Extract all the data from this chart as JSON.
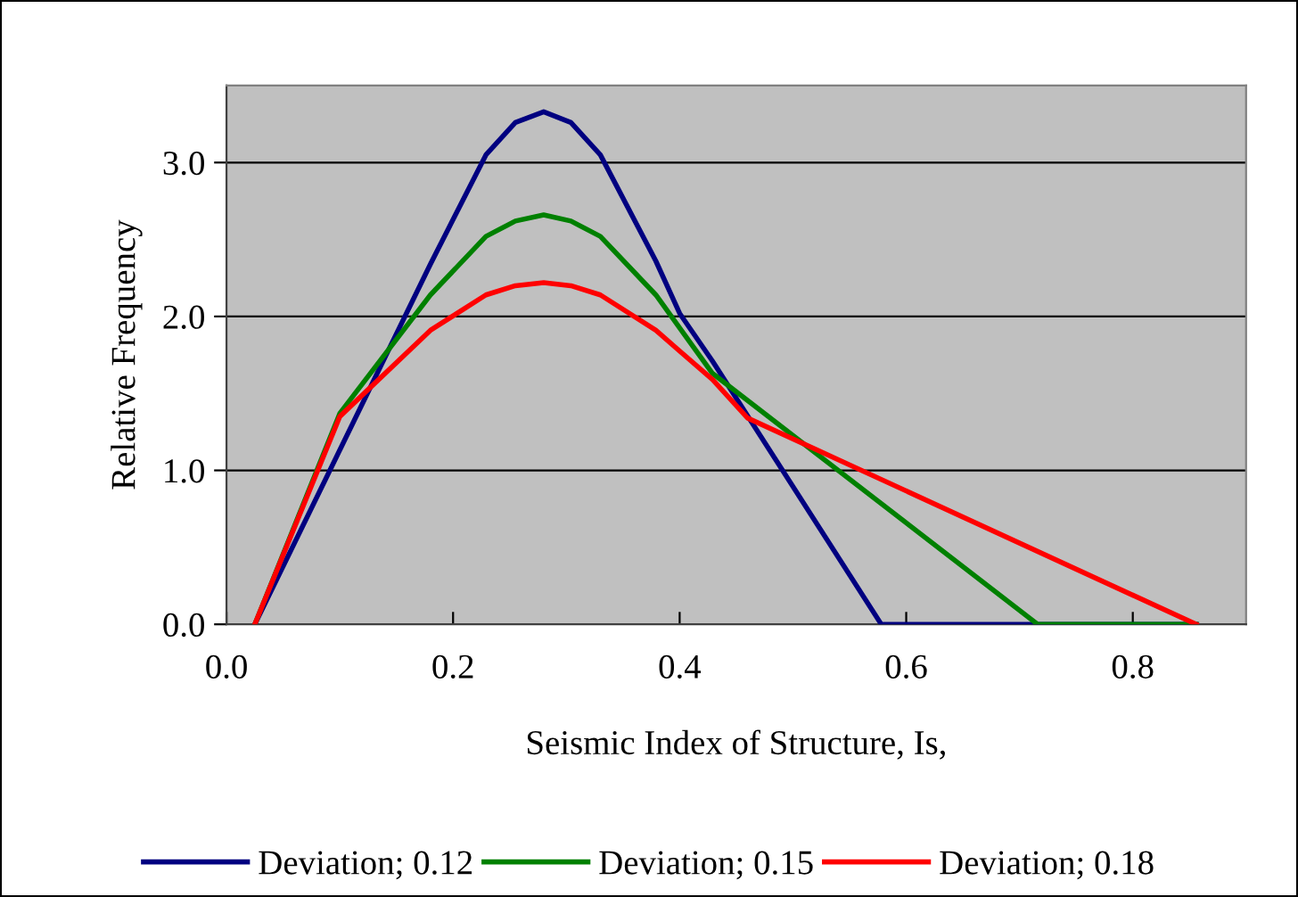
{
  "chart_data": {
    "type": "line",
    "xlabel": "Seismic Index of Structure, Is,",
    "ylabel": "Relative Frequency",
    "xlim": [
      0,
      0.9
    ],
    "ylim": [
      0,
      3.5
    ],
    "xticks": [
      {
        "value": 0,
        "label": "0.0"
      },
      {
        "value": 0.2,
        "label": "0.2"
      },
      {
        "value": 0.4,
        "label": "0.4"
      },
      {
        "value": 0.6,
        "label": "0.6"
      },
      {
        "value": 0.8,
        "label": "0.8"
      }
    ],
    "yticks": [
      {
        "value": 0,
        "label": "0.0"
      },
      {
        "value": 1,
        "label": "1.0"
      },
      {
        "value": 2,
        "label": "2.0"
      },
      {
        "value": 3,
        "label": "3.0"
      }
    ],
    "grid": "y",
    "legend": "bottom",
    "marker": "none",
    "line_style": "solid",
    "series": [
      {
        "name": "Deviation; 0.12",
        "color": "#000080",
        "x": [
          0.025,
          0.18,
          0.229,
          0.255,
          0.28,
          0.304,
          0.33,
          0.379,
          0.4,
          0.429,
          0.578,
          0.856
        ],
        "values": [
          0,
          2.34,
          3.05,
          3.26,
          3.33,
          3.26,
          3.05,
          2.36,
          2.02,
          1.71,
          0,
          0
        ]
      },
      {
        "name": "Deviation; 0.15",
        "color": "#008000",
        "x": [
          0.025,
          0.1,
          0.18,
          0.229,
          0.255,
          0.28,
          0.304,
          0.33,
          0.379,
          0.429,
          0.716,
          0.856
        ],
        "values": [
          0,
          1.37,
          2.14,
          2.52,
          2.62,
          2.66,
          2.62,
          2.52,
          2.14,
          1.63,
          0,
          0
        ]
      },
      {
        "name": "Deviation; 0.18",
        "color": "#ff0000",
        "x": [
          0.025,
          0.1,
          0.18,
          0.229,
          0.255,
          0.28,
          0.304,
          0.33,
          0.379,
          0.429,
          0.46,
          0.856
        ],
        "values": [
          0,
          1.35,
          1.91,
          2.14,
          2.2,
          2.22,
          2.2,
          2.14,
          1.91,
          1.59,
          1.34,
          0
        ]
      }
    ]
  }
}
